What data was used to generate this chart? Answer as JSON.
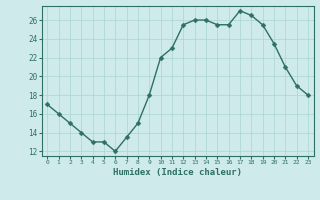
{
  "x": [
    0,
    1,
    2,
    3,
    4,
    5,
    6,
    7,
    8,
    9,
    10,
    11,
    12,
    13,
    14,
    15,
    16,
    17,
    18,
    19,
    20,
    21,
    22,
    23
  ],
  "y": [
    17,
    16,
    15,
    14,
    13,
    13,
    12,
    13.5,
    15,
    18,
    22,
    23,
    25.5,
    26,
    26,
    25.5,
    25.5,
    27,
    26.5,
    25.5,
    23.5,
    21,
    19,
    18
  ],
  "line_color": "#2e7063",
  "marker_color": "#2e7063",
  "bg_color": "#ceeaea",
  "grid_color": "#aad4d4",
  "xlabel": "Humidex (Indice chaleur)",
  "ylim": [
    11.5,
    27.5
  ],
  "xlim": [
    -0.5,
    23.5
  ],
  "yticks": [
    12,
    14,
    16,
    18,
    20,
    22,
    24,
    26
  ],
  "xticks": [
    0,
    1,
    2,
    3,
    4,
    5,
    6,
    7,
    8,
    9,
    10,
    11,
    12,
    13,
    14,
    15,
    16,
    17,
    18,
    19,
    20,
    21,
    22,
    23
  ],
  "xtick_labels": [
    "0",
    "1",
    "2",
    "3",
    "4",
    "5",
    "6",
    "7",
    "8",
    "9",
    "10",
    "11",
    "12",
    "13",
    "14",
    "15",
    "16",
    "17",
    "18",
    "19",
    "20",
    "21",
    "22",
    "23"
  ],
  "font_color": "#2e7063",
  "tick_color": "#2e7063",
  "spine_color": "#2e7063",
  "linewidth": 1.0,
  "markersize": 2.5
}
